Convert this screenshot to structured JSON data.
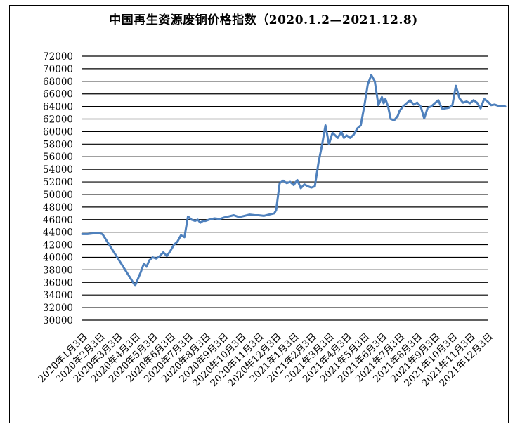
{
  "chart_data": {
    "type": "line",
    "title": "中国再生资源废铜价格指数（2020.1.2—2021.12.8)",
    "xlabel": "",
    "ylabel": "",
    "ylim": [
      30000,
      72000
    ],
    "y_ticks": [
      "30000",
      "32000",
      "34000",
      "36000",
      "38000",
      "40000",
      "42000",
      "44000",
      "46000",
      "48000",
      "50000",
      "52000",
      "54000",
      "56000",
      "58000",
      "60000",
      "62000",
      "64000",
      "66000",
      "68000",
      "70000",
      "72000"
    ],
    "x_ticks": [
      "2020年1月3日",
      "2020年2月3日",
      "2020年3月3日",
      "2020年4月3日",
      "2020年5月3日",
      "2020年6月3日",
      "2020年7月3日",
      "2020年8月3日",
      "2020年9月3日",
      "2020年10月3日",
      "2020年11月3日",
      "2020年12月3日",
      "2021年1月3日",
      "2021年2月3日",
      "2021年3月3日",
      "2021年4月3日",
      "2021年5月3日",
      "2021年6月3日",
      "2021年7月3日",
      "2021年8月3日",
      "2021年9月3日",
      "2021年10月3日",
      "2021年11月3日",
      "2021年12月3日"
    ],
    "grid": "horizontal",
    "legend": "none",
    "color": "#4f81bd",
    "series": [
      {
        "x": [
          0,
          0.3,
          0.6,
          1.0,
          1.15,
          3.0,
          3.15,
          3.3,
          3.5,
          3.65,
          3.8,
          4.0,
          4.2,
          4.4,
          4.6,
          4.8,
          5.0,
          5.2,
          5.4,
          5.6,
          5.8,
          6.0,
          6.2,
          6.4,
          6.55,
          6.7,
          6.85,
          7.0,
          7.2,
          7.5,
          7.8,
          8.0,
          8.3,
          8.6,
          8.9,
          9.2,
          9.5,
          9.8,
          10.0,
          10.3,
          10.6,
          10.9,
          11.0,
          11.2,
          11.4,
          11.6,
          11.8,
          12.0,
          12.2,
          12.4,
          12.6,
          12.8,
          13.0,
          13.2,
          13.4,
          13.6,
          13.8,
          14.0,
          14.2,
          14.5,
          14.7,
          14.85,
          15.0,
          15.2,
          15.4,
          15.6,
          15.8,
          16.0,
          16.2,
          16.4,
          16.6,
          16.8,
          17.0,
          17.1,
          17.2,
          17.35,
          17.5,
          17.7,
          17.9,
          18.0,
          18.2,
          18.4,
          18.6,
          18.8,
          19.0,
          19.2,
          19.4,
          19.6,
          19.8,
          20.0,
          20.2,
          20.4,
          20.5,
          20.6,
          20.8,
          21.0,
          21.2,
          21.4,
          21.6,
          21.8,
          22.0,
          22.2,
          22.4,
          22.6,
          22.8,
          23.0,
          23.2,
          23.4,
          23.6,
          23.8,
          24.0
        ],
        "y": [
          43700,
          43700,
          43800,
          43800,
          43700,
          35500,
          36500,
          37500,
          39000,
          38500,
          39500,
          40000,
          39800,
          40200,
          40800,
          40200,
          41000,
          42000,
          42500,
          43500,
          43200,
          46500,
          46000,
          45800,
          46000,
          45500,
          45800,
          45800,
          46000,
          46200,
          46100,
          46300,
          46500,
          46700,
          46400,
          46600,
          46800,
          46700,
          46700,
          46600,
          46800,
          47000,
          47500,
          51800,
          52200,
          51800,
          52000,
          51500,
          52300,
          51000,
          51600,
          51300,
          51100,
          51300,
          55000,
          57800,
          61000,
          58000,
          59800,
          59000,
          60000,
          59000,
          59400,
          59000,
          59500,
          60500,
          61000,
          64000,
          67500,
          69000,
          68000,
          64200,
          65500,
          64500,
          65200,
          64000,
          62000,
          61800,
          62500,
          63300,
          64000,
          64500,
          65000,
          64300,
          64600,
          64000,
          62100,
          63800,
          64000,
          64500,
          65000,
          63700,
          63600,
          63700,
          63800,
          64200,
          67300,
          65300,
          64600,
          64800,
          64500,
          65000,
          64600,
          63700,
          65200,
          64800,
          64200,
          64300,
          64100,
          64100,
          64000
        ]
      }
    ]
  }
}
